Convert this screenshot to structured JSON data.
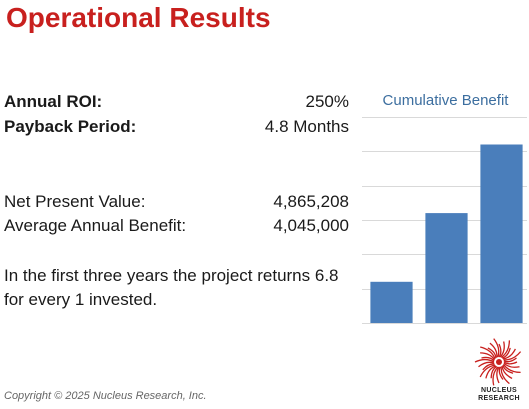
{
  "title": "Operational Results",
  "metrics_primary": [
    {
      "label": "Annual ROI:",
      "value": "250%"
    },
    {
      "label": "Payback Period:",
      "value": "4.8 Months"
    }
  ],
  "metrics_secondary": [
    {
      "label": "Net Present Value:",
      "value": "4,865,208"
    },
    {
      "label": "Average Annual Benefit:",
      "value": "4,045,000"
    }
  ],
  "summary": "In the first three years the project returns 6.8 for every 1 invested.",
  "copyright": "Copyright © 2025 Nucleus Research, Inc.",
  "logo": {
    "line1": "NUCLEUS",
    "line2": "RESEARCH",
    "color": "#c8201e"
  },
  "colors": {
    "title": "#c8201e",
    "bar": "#4a7ebb",
    "chart_title": "#3c6e9f",
    "grid": "#d9d9d9"
  },
  "chart_data": {
    "type": "bar",
    "title": "Cumulative Benefit",
    "categories": [
      "",
      "",
      ""
    ],
    "series": [
      {
        "values": [
          1.2,
          3.2,
          5.2
        ]
      }
    ],
    "ylim": [
      0,
      6
    ],
    "grid": true,
    "legend": "none"
  }
}
